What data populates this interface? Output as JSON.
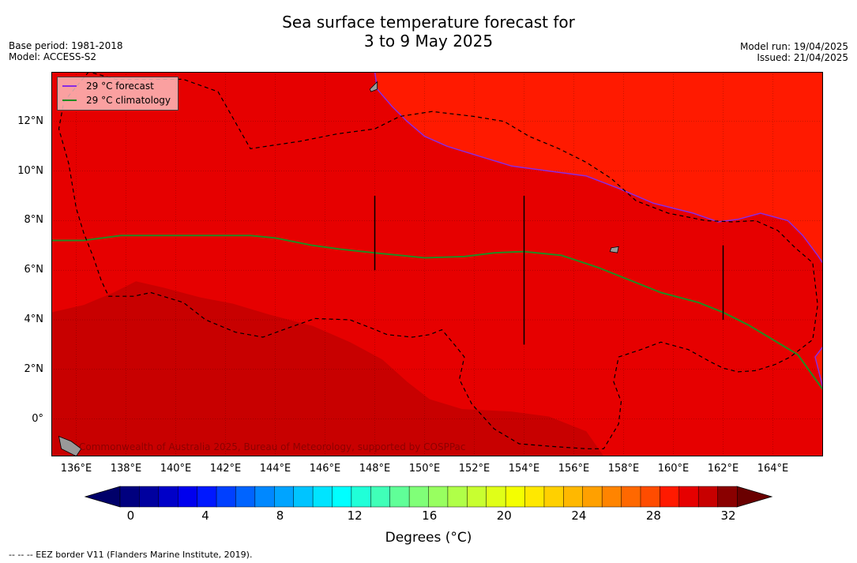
{
  "header": {
    "title_line1": "Sea surface temperature forecast for",
    "title_line2": "3 to 9 May 2025",
    "base_period": "Base period: 1981-2018",
    "model": "Model: ACCESS-S2",
    "model_run": "Model run: 19/04/2025",
    "issued": "Issued: 21/04/2025"
  },
  "map": {
    "lon_range": [
      135,
      166
    ],
    "lat_range": [
      -1.5,
      14
    ],
    "lon_ticks": [
      "136°E",
      "138°E",
      "140°E",
      "142°E",
      "144°E",
      "146°E",
      "148°E",
      "150°E",
      "152°E",
      "154°E",
      "156°E",
      "158°E",
      "160°E",
      "162°E",
      "164°E"
    ],
    "lat_ticks": [
      "12°N",
      "10°N",
      "8°N",
      "6°N",
      "4°N",
      "2°N",
      "0°"
    ],
    "colors": {
      "band_31": "#c80000",
      "band_30": "#e60000",
      "band_29": "#ff1a00",
      "land": "#999999",
      "forecast_line": "#8a2be2",
      "climatology_line": "#228b22",
      "eez_line": "#000000"
    },
    "forecast_29_contour": [
      [
        148.0,
        14.0
      ],
      [
        148.1,
        13.3
      ],
      [
        148.7,
        12.6
      ],
      [
        149.3,
        12.0
      ],
      [
        150.0,
        11.4
      ],
      [
        150.9,
        11.0
      ],
      [
        152.2,
        10.6
      ],
      [
        153.5,
        10.2
      ],
      [
        155.0,
        10.0
      ],
      [
        156.5,
        9.8
      ],
      [
        157.8,
        9.3
      ],
      [
        159.2,
        8.7
      ],
      [
        160.8,
        8.3
      ],
      [
        161.8,
        7.95
      ],
      [
        162.6,
        8.05
      ],
      [
        163.5,
        8.3
      ],
      [
        164.6,
        8.0
      ],
      [
        165.2,
        7.4
      ],
      [
        165.8,
        6.6
      ],
      [
        166.0,
        6.3
      ]
    ],
    "forecast_29_contour_east": [
      [
        166.0,
        2.9
      ],
      [
        165.7,
        2.5
      ],
      [
        166.0,
        1.3
      ]
    ],
    "climatology_29_contour": [
      [
        135.0,
        7.2
      ],
      [
        136.3,
        7.2
      ],
      [
        137.8,
        7.4
      ],
      [
        139.5,
        7.4
      ],
      [
        141.5,
        7.4
      ],
      [
        143.0,
        7.4
      ],
      [
        144.0,
        7.3
      ],
      [
        145.5,
        7.0
      ],
      [
        146.6,
        6.85
      ],
      [
        148.0,
        6.7
      ],
      [
        150.0,
        6.5
      ],
      [
        151.6,
        6.55
      ],
      [
        152.8,
        6.7
      ],
      [
        154.0,
        6.75
      ],
      [
        155.5,
        6.6
      ],
      [
        157.0,
        6.1
      ],
      [
        158.5,
        5.5
      ],
      [
        159.5,
        5.1
      ],
      [
        161.0,
        4.7
      ],
      [
        162.0,
        4.3
      ],
      [
        163.0,
        3.8
      ],
      [
        164.0,
        3.2
      ],
      [
        165.0,
        2.6
      ],
      [
        166.0,
        1.2
      ]
    ],
    "eez_boundaries": [
      [
        [
          136.5,
          14.0
        ],
        [
          135.5,
          12.8
        ],
        [
          135.3,
          11.7
        ],
        [
          135.7,
          10.3
        ],
        [
          136.0,
          8.5
        ],
        [
          136.3,
          7.5
        ],
        [
          136.7,
          6.5
        ],
        [
          137.0,
          5.6
        ],
        [
          137.3,
          4.95
        ],
        [
          138.3,
          4.95
        ],
        [
          139.0,
          5.1
        ],
        [
          140.3,
          4.7
        ],
        [
          141.2,
          4.0
        ],
        [
          142.4,
          3.5
        ],
        [
          143.5,
          3.3
        ],
        [
          144.6,
          3.7
        ],
        [
          145.6,
          4.05
        ],
        [
          147.0,
          4.0
        ],
        [
          147.9,
          3.65
        ],
        [
          148.5,
          3.4
        ],
        [
          149.5,
          3.3
        ],
        [
          150.2,
          3.4
        ],
        [
          150.7,
          3.6
        ],
        [
          151.2,
          3.0
        ],
        [
          151.6,
          2.5
        ],
        [
          151.4,
          1.6
        ],
        [
          151.9,
          0.6
        ],
        [
          152.8,
          -0.4
        ],
        [
          153.8,
          -1.0
        ],
        [
          155.0,
          -1.1
        ],
        [
          156.5,
          -1.2
        ],
        [
          157.2,
          -1.2
        ],
        [
          157.8,
          -0.2
        ],
        [
          157.9,
          0.7
        ],
        [
          157.6,
          1.5
        ],
        [
          157.8,
          2.5
        ],
        [
          158.7,
          2.8
        ],
        [
          159.5,
          3.1
        ],
        [
          160.6,
          2.8
        ],
        [
          161.5,
          2.3
        ],
        [
          162.0,
          2.05
        ],
        [
          162.6,
          1.9
        ],
        [
          163.3,
          1.95
        ],
        [
          164.1,
          2.2
        ],
        [
          164.7,
          2.5
        ],
        [
          165.6,
          3.2
        ],
        [
          165.8,
          4.6
        ],
        [
          165.6,
          6.3
        ],
        [
          164.9,
          6.9
        ],
        [
          164.2,
          7.6
        ],
        [
          163.3,
          8.0
        ],
        [
          162.4,
          7.95
        ],
        [
          161.3,
          8.0
        ],
        [
          159.8,
          8.3
        ],
        [
          158.5,
          8.8
        ],
        [
          157.5,
          9.7
        ],
        [
          156.5,
          10.35
        ],
        [
          155.4,
          10.9
        ],
        [
          154.2,
          11.4
        ],
        [
          153.2,
          12.0
        ],
        [
          152.0,
          12.2
        ],
        [
          150.3,
          12.4
        ],
        [
          149.0,
          12.2
        ],
        [
          148.0,
          11.7
        ],
        [
          146.5,
          11.5
        ],
        [
          145.0,
          11.2
        ],
        [
          143.0,
          10.9
        ],
        [
          141.7,
          13.2
        ],
        [
          140.3,
          13.7
        ],
        [
          138.8,
          13.7
        ],
        [
          137.6,
          13.7
        ],
        [
          136.5,
          14.0
        ]
      ]
    ],
    "islands": [
      [
        [
          147.8,
          13.3
        ],
        [
          148.1,
          13.6
        ],
        [
          148.1,
          13.3
        ],
        [
          147.85,
          13.2
        ]
      ],
      [
        [
          157.5,
          6.9
        ],
        [
          157.8,
          6.95
        ],
        [
          157.75,
          6.7
        ],
        [
          157.45,
          6.75
        ]
      ],
      [
        [
          135.3,
          -0.7
        ],
        [
          135.8,
          -0.9
        ],
        [
          136.2,
          -1.2
        ],
        [
          136.0,
          -1.5
        ],
        [
          135.4,
          -1.2
        ]
      ]
    ],
    "credit": "Commonwealth of Australia 2025, Bureau of Meteorology, supported by COSPPac"
  },
  "legend": {
    "forecast_label": "29 °C  forecast",
    "climatology_label": "29 °C  climatology"
  },
  "colorbar": {
    "min": 0,
    "max": 32,
    "step": 1,
    "ticks": [
      "0",
      "4",
      "8",
      "12",
      "16",
      "20",
      "24",
      "28",
      "32"
    ],
    "label": "Degrees (°C)",
    "colors": [
      "#00007f",
      "#00009f",
      "#0000c8",
      "#0000ee",
      "#0018ff",
      "#0040ff",
      "#0064ff",
      "#0088ff",
      "#00a4ff",
      "#00c4ff",
      "#00e4ff",
      "#00ffff",
      "#20ffd8",
      "#40ffb8",
      "#60ff98",
      "#80ff78",
      "#98ff60",
      "#b0ff48",
      "#c8ff30",
      "#e0ff18",
      "#f4ff00",
      "#ffe800",
      "#ffd000",
      "#ffb800",
      "#ffa000",
      "#ff8400",
      "#ff6800",
      "#ff4c00",
      "#ff1a00",
      "#e60000",
      "#c80000",
      "#8a0000"
    ],
    "under_color": "#00006a",
    "over_color": "#6a0000"
  },
  "footnote": "--  --  -- EEZ border V11 (Flanders Marine Institute, 2019)."
}
